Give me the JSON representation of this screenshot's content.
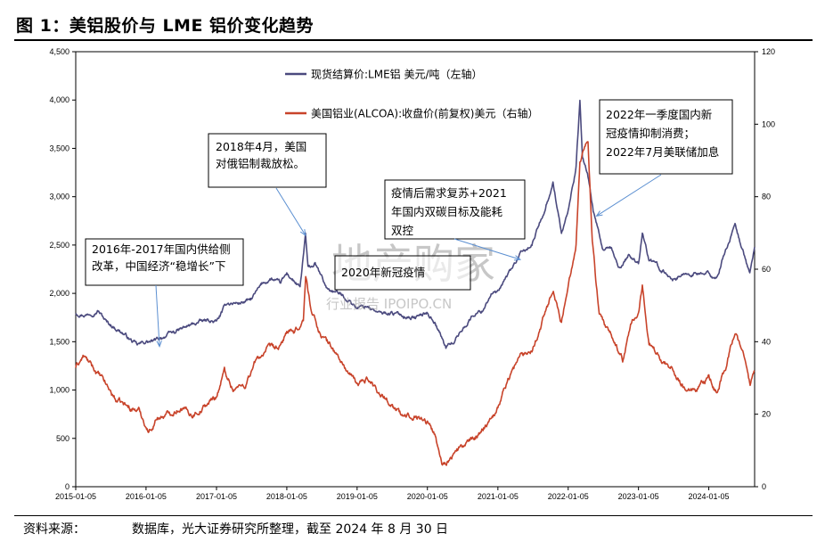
{
  "header": {
    "title": "图 1：美铝股价与 LME 铝价变化趋势"
  },
  "footer": {
    "source_label": "资料来源：",
    "source_text": "数据库，光大证券研究所整理，截至 2024 年 8 月 30 日"
  },
  "watermark": {
    "main": "地产购家",
    "sub": "行业报告 IPOIPO.CN"
  },
  "chart_data": {
    "type": "line",
    "title": "",
    "x_ticks": [
      "2015-01-05",
      "2016-01-05",
      "2017-01-05",
      "2018-01-05",
      "2019-01-05",
      "2020-01-05",
      "2021-01-05",
      "2022-01-05",
      "2023-01-05",
      "2024-01-05"
    ],
    "x_range": [
      "2015-01-05",
      "2024-08-30"
    ],
    "y_left": {
      "min": 0,
      "max": 4500,
      "ticks": [
        "0",
        "500",
        "1,000",
        "1,500",
        "2,000",
        "2,500",
        "3,000",
        "3,500",
        "4,000",
        "4,500"
      ]
    },
    "y_right": {
      "min": 0,
      "max": 120,
      "ticks": [
        "0",
        "20",
        "40",
        "60",
        "80",
        "100",
        "120"
      ]
    },
    "legend_placement": "top-left",
    "grid": false,
    "series": [
      {
        "name": "现货结算价:LME铝 美元/吨（左轴）",
        "axis": "left",
        "color": "#4b4a7e",
        "points": [
          [
            "2015-01-05",
            1800
          ],
          [
            "2015-03-01",
            1780
          ],
          [
            "2015-05-01",
            1830
          ],
          [
            "2015-06-15",
            1700
          ],
          [
            "2015-09-01",
            1600
          ],
          [
            "2015-11-20",
            1460
          ],
          [
            "2016-01-05",
            1500
          ],
          [
            "2016-02-15",
            1500
          ],
          [
            "2016-04-01",
            1550
          ],
          [
            "2016-06-01",
            1600
          ],
          [
            "2016-08-01",
            1650
          ],
          [
            "2016-10-01",
            1700
          ],
          [
            "2016-12-01",
            1720
          ],
          [
            "2017-01-05",
            1700
          ],
          [
            "2017-03-01",
            1900
          ],
          [
            "2017-05-01",
            1900
          ],
          [
            "2017-07-01",
            1930
          ],
          [
            "2017-09-01",
            2100
          ],
          [
            "2017-10-15",
            2150
          ],
          [
            "2017-12-01",
            2100
          ],
          [
            "2018-01-05",
            2200
          ],
          [
            "2018-02-15",
            2120
          ],
          [
            "2018-03-15",
            2050
          ],
          [
            "2018-04-12",
            2600
          ],
          [
            "2018-04-25",
            2250
          ],
          [
            "2018-06-01",
            2300
          ],
          [
            "2018-08-01",
            2050
          ],
          [
            "2018-10-01",
            2000
          ],
          [
            "2018-12-01",
            1920
          ],
          [
            "2019-01-05",
            1850
          ],
          [
            "2019-03-01",
            1870
          ],
          [
            "2019-05-01",
            1790
          ],
          [
            "2019-07-01",
            1800
          ],
          [
            "2019-09-01",
            1770
          ],
          [
            "2019-11-01",
            1750
          ],
          [
            "2020-01-05",
            1800
          ],
          [
            "2020-02-15",
            1700
          ],
          [
            "2020-03-15",
            1560
          ],
          [
            "2020-04-10",
            1440
          ],
          [
            "2020-05-20",
            1500
          ],
          [
            "2020-07-01",
            1620
          ],
          [
            "2020-09-01",
            1780
          ],
          [
            "2020-10-15",
            1820
          ],
          [
            "2020-12-01",
            2000
          ],
          [
            "2021-01-05",
            2000
          ],
          [
            "2021-03-01",
            2200
          ],
          [
            "2021-05-01",
            2400
          ],
          [
            "2021-07-01",
            2500
          ],
          [
            "2021-09-01",
            2850
          ],
          [
            "2021-10-18",
            3150
          ],
          [
            "2021-12-01",
            2620
          ],
          [
            "2022-01-05",
            2850
          ],
          [
            "2022-02-15",
            3300
          ],
          [
            "2022-03-07",
            3990
          ],
          [
            "2022-03-20",
            3400
          ],
          [
            "2022-04-15",
            3250
          ],
          [
            "2022-05-15",
            2850
          ],
          [
            "2022-07-01",
            2450
          ],
          [
            "2022-08-15",
            2450
          ],
          [
            "2022-10-01",
            2250
          ],
          [
            "2022-11-15",
            2400
          ],
          [
            "2022-12-15",
            2350
          ],
          [
            "2023-01-05",
            2300
          ],
          [
            "2023-01-25",
            2650
          ],
          [
            "2023-03-01",
            2350
          ],
          [
            "2023-05-01",
            2250
          ],
          [
            "2023-07-01",
            2150
          ],
          [
            "2023-09-01",
            2200
          ],
          [
            "2023-11-01",
            2200
          ],
          [
            "2024-01-05",
            2200
          ],
          [
            "2024-02-15",
            2150
          ],
          [
            "2024-04-01",
            2450
          ],
          [
            "2024-05-20",
            2700
          ],
          [
            "2024-06-20",
            2500
          ],
          [
            "2024-07-15",
            2350
          ],
          [
            "2024-08-05",
            2200
          ],
          [
            "2024-08-30",
            2480
          ]
        ]
      },
      {
        "name": "美国铝业(ALCOA):收盘价(前复权)美元（右轴）",
        "axis": "right",
        "color": "#c8432a",
        "points": [
          [
            "2015-01-05",
            33
          ],
          [
            "2015-02-15",
            36
          ],
          [
            "2015-04-01",
            33
          ],
          [
            "2015-06-01",
            29
          ],
          [
            "2015-08-01",
            24
          ],
          [
            "2015-10-01",
            22
          ],
          [
            "2015-12-01",
            21
          ],
          [
            "2016-01-20",
            15
          ],
          [
            "2016-03-01",
            19
          ],
          [
            "2016-05-01",
            20
          ],
          [
            "2016-07-01",
            22
          ],
          [
            "2016-09-01",
            20
          ],
          [
            "2016-11-01",
            22
          ],
          [
            "2017-01-05",
            25
          ],
          [
            "2017-02-15",
            32
          ],
          [
            "2017-04-01",
            27
          ],
          [
            "2017-06-01",
            28
          ],
          [
            "2017-08-01",
            35
          ],
          [
            "2017-10-01",
            38
          ],
          [
            "2017-12-01",
            38
          ],
          [
            "2018-01-05",
            43
          ],
          [
            "2018-02-15",
            42
          ],
          [
            "2018-04-01",
            46
          ],
          [
            "2018-04-13",
            58
          ],
          [
            "2018-05-15",
            48
          ],
          [
            "2018-07-01",
            42
          ],
          [
            "2018-09-01",
            38
          ],
          [
            "2018-11-01",
            33
          ],
          [
            "2019-01-05",
            28
          ],
          [
            "2019-03-01",
            30
          ],
          [
            "2019-05-01",
            26
          ],
          [
            "2019-07-01",
            23
          ],
          [
            "2019-09-01",
            19
          ],
          [
            "2019-11-01",
            20
          ],
          [
            "2020-01-05",
            18
          ],
          [
            "2020-02-15",
            14
          ],
          [
            "2020-03-23",
            6
          ],
          [
            "2020-05-01",
            8
          ],
          [
            "2020-07-01",
            11
          ],
          [
            "2020-09-01",
            13
          ],
          [
            "2020-11-01",
            17
          ],
          [
            "2021-01-05",
            22
          ],
          [
            "2021-03-01",
            30
          ],
          [
            "2021-05-01",
            36
          ],
          [
            "2021-07-01",
            38
          ],
          [
            "2021-09-01",
            47
          ],
          [
            "2021-10-20",
            55
          ],
          [
            "2021-12-01",
            45
          ],
          [
            "2022-01-05",
            55
          ],
          [
            "2022-02-15",
            68
          ],
          [
            "2022-03-07",
            90
          ],
          [
            "2022-04-18",
            96
          ],
          [
            "2022-05-10",
            68
          ],
          [
            "2022-06-15",
            47
          ],
          [
            "2022-07-15",
            44
          ],
          [
            "2022-09-01",
            40
          ],
          [
            "2022-10-15",
            35
          ],
          [
            "2022-12-01",
            45
          ],
          [
            "2023-01-05",
            48
          ],
          [
            "2023-01-25",
            55
          ],
          [
            "2023-03-01",
            40
          ],
          [
            "2023-05-01",
            35
          ],
          [
            "2023-07-01",
            33
          ],
          [
            "2023-09-01",
            27
          ],
          [
            "2023-11-01",
            26
          ],
          [
            "2024-01-05",
            30
          ],
          [
            "2024-02-15",
            26
          ],
          [
            "2024-04-01",
            33
          ],
          [
            "2024-05-20",
            43
          ],
          [
            "2024-06-20",
            38
          ],
          [
            "2024-07-15",
            34
          ],
          [
            "2024-08-07",
            28
          ],
          [
            "2024-08-30",
            32
          ]
        ]
      }
    ],
    "annotations": [
      {
        "lines": [
          "2016年-2017年国内供给侧",
          "改革，中国经济“稳增长”下"
        ],
        "date": "2016-03-15",
        "value_left": 1450
      },
      {
        "lines": [
          "2018年4月，美国",
          "对俄铝制裁放松。"
        ],
        "date": "2018-04-12",
        "value_left": 2600
      },
      {
        "lines": [
          "2020年新冠疫情"
        ],
        "date": "2020-03-20",
        "value_left": 1550
      },
      {
        "lines": [
          "疫情后需求复苏+2021",
          "年国内双碳目标及能耗",
          "双控"
        ],
        "date": "2021-05-01",
        "value_left": 2350
      },
      {
        "lines": [
          "2022年一季度国内新",
          "冠疫情抑制消费；",
          "2022年7月美联储加息"
        ],
        "date": "2022-06-01",
        "value_left": 2800
      }
    ]
  }
}
